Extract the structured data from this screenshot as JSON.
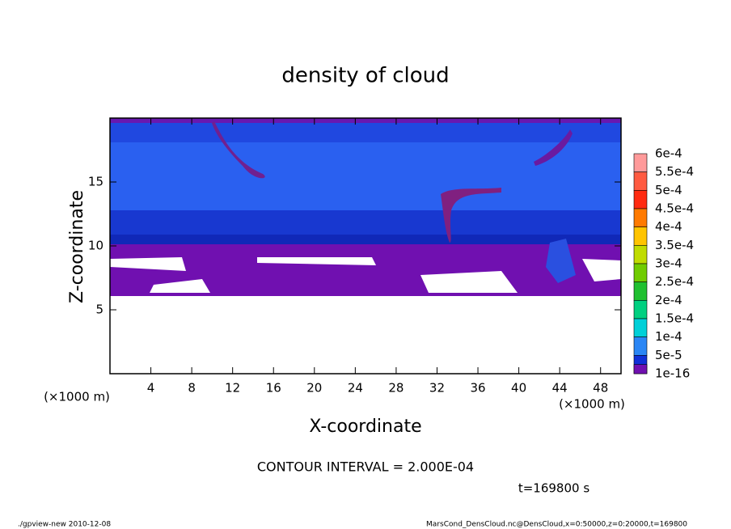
{
  "chart_data": {
    "type": "contour",
    "title": "density of cloud",
    "x_label": "X-coordinate",
    "y_label": "Z-coordinate",
    "x_unit": "(×1000 m)",
    "y_unit": "(×1000 m)",
    "xlim": [
      0,
      50
    ],
    "xticks": [
      4,
      8,
      12,
      16,
      20,
      24,
      28,
      32,
      36,
      40,
      44,
      48
    ],
    "ylim": [
      0,
      20
    ],
    "yticks": [
      5,
      10,
      15
    ],
    "levels": [
      {
        "value": 0.0006,
        "label": "6e-4"
      },
      {
        "value": 0.00055,
        "label": "5.5e-4"
      },
      {
        "value": 0.0005,
        "label": "5e-4"
      },
      {
        "value": 0.00045,
        "label": "4.5e-4"
      },
      {
        "value": 0.0004,
        "label": "4e-4"
      },
      {
        "value": 0.00035,
        "label": "3.5e-4"
      },
      {
        "value": 0.0003,
        "label": "3e-4"
      },
      {
        "value": 0.00025,
        "label": "2.5e-4"
      },
      {
        "value": 0.0002,
        "label": "2e-4"
      },
      {
        "value": 0.00015,
        "label": "1.5e-4"
      },
      {
        "value": 0.0001,
        "label": "1e-4"
      },
      {
        "value": 5e-05,
        "label": "5e-5"
      },
      {
        "value": 1e-16,
        "label": "1e-16"
      }
    ],
    "level_colors": [
      "#ff9a9a",
      "#ff5a40",
      "#ff2a10",
      "#ff7a00",
      "#ffc400",
      "#c0dc00",
      "#70cc00",
      "#20c030",
      "#00d080",
      "#00d0d8",
      "#2a86f5",
      "#1030d8"
    ],
    "bottom_color": "#7010b0",
    "contour_interval": "CONTOUR INTERVAL = 2.000E-04",
    "time": "t=169800 s",
    "footer_left": "./gpview-new   2010-12-08",
    "footer_right": "MarsCond_DensCloud.nc@DensCloud,x=0:50000,z=0:20000,t=169800"
  }
}
